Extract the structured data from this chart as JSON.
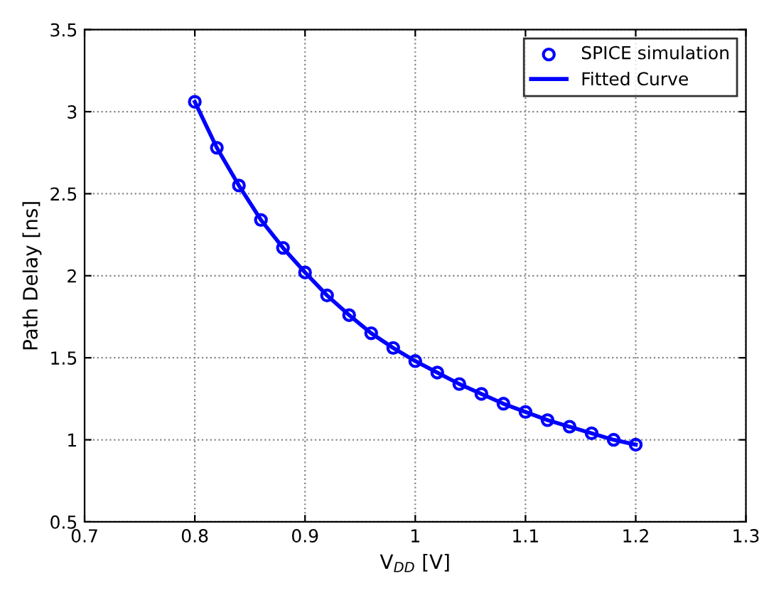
{
  "chart_data": {
    "type": "line",
    "xlabel": "V$_{DD}$ [V]",
    "ylabel": "Path Delay [ns]",
    "x": [
      0.8,
      0.82,
      0.84,
      0.86,
      0.88,
      0.9,
      0.92,
      0.94,
      0.96,
      0.98,
      1.0,
      1.02,
      1.04,
      1.06,
      1.08,
      1.1,
      1.12,
      1.14,
      1.16,
      1.18,
      1.2
    ],
    "series": [
      {
        "name": "SPICE simulation",
        "type": "scatter",
        "marker": "circle",
        "color": "#0000ff",
        "values": [
          3.06,
          2.78,
          2.55,
          2.34,
          2.17,
          2.02,
          1.88,
          1.76,
          1.65,
          1.56,
          1.48,
          1.41,
          1.34,
          1.28,
          1.22,
          1.17,
          1.12,
          1.08,
          1.04,
          1.0,
          0.97
        ]
      },
      {
        "name": "Fitted Curve",
        "line_style": "solid",
        "color": "#0000ff",
        "values": [
          3.06,
          2.78,
          2.55,
          2.34,
          2.17,
          2.02,
          1.88,
          1.76,
          1.65,
          1.56,
          1.48,
          1.41,
          1.34,
          1.28,
          1.22,
          1.17,
          1.12,
          1.08,
          1.04,
          1.0,
          0.97
        ]
      }
    ],
    "xlim": [
      0.7,
      1.3
    ],
    "xticks": [
      0.7,
      0.8,
      0.9,
      1,
      1.1,
      1.2,
      1.3
    ],
    "ylim": [
      0.5,
      3.5
    ],
    "yticks": [
      0.5,
      1,
      1.5,
      2,
      2.5,
      3,
      3.5
    ],
    "grid": true,
    "legend": "top right"
  }
}
